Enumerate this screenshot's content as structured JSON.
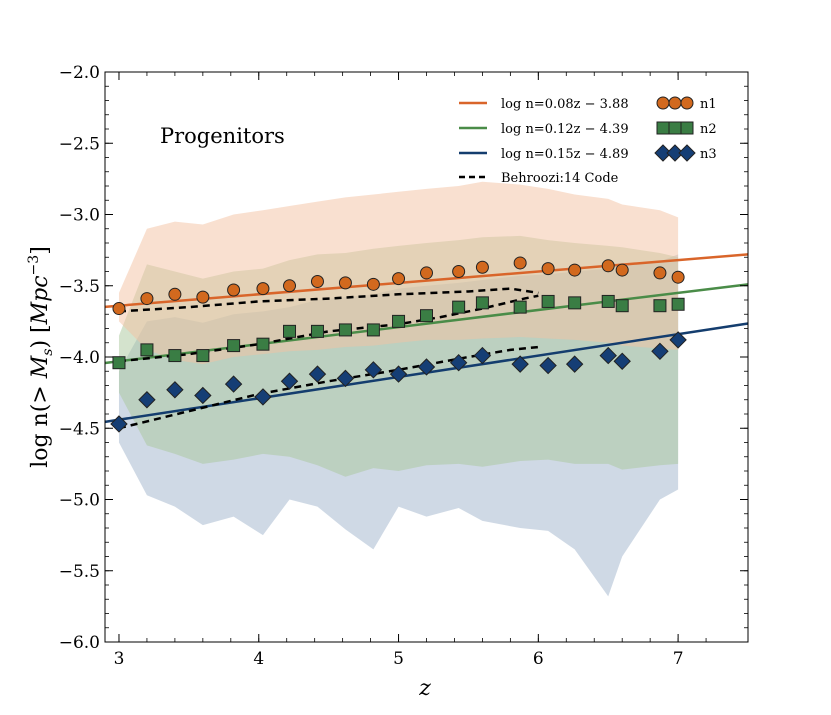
{
  "chart_data": {
    "type": "scatter",
    "title": "",
    "annotation": "Progenitors",
    "xlabel": "z",
    "ylabel": "log n(> M_s) [Mpc^-3]",
    "xlim": [
      2.9,
      7.5
    ],
    "ylim": [
      -6.0,
      -2.0
    ],
    "xticks": [
      3,
      4,
      5,
      6,
      7
    ],
    "yticks": [
      -6.0,
      -5.5,
      -5.0,
      -4.5,
      -4.0,
      -3.5,
      -3.0,
      -2.5,
      -2.0
    ],
    "legend_position": "top-right",
    "colors": {
      "n1": "#d2691e",
      "n2": "#3a7d44",
      "n3": "#153e75",
      "line1": "#d9652a",
      "line2": "#4a8c48",
      "line3": "#143d6e",
      "band1": "#f3c1a1",
      "band2": "#a9c79b",
      "band3": "#9fb3cc",
      "behroozi": "#000000"
    },
    "fit_lines": [
      {
        "name": "log n=0.08z − 3.88",
        "slope": 0.08,
        "intercept": -3.88
      },
      {
        "name": "log n=0.12z − 4.39",
        "slope": 0.12,
        "intercept": -4.39
      },
      {
        "name": "log n=0.15z − 4.89",
        "slope": 0.15,
        "intercept": -4.89
      }
    ],
    "behroozi": {
      "name": "Behroozi:14 Code",
      "curves": [
        {
          "x": [
            3.0,
            3.5,
            4.0,
            4.5,
            5.0,
            5.5,
            5.8,
            6.0
          ],
          "y": [
            -3.68,
            -3.65,
            -3.61,
            -3.59,
            -3.56,
            -3.54,
            -3.52,
            -3.55
          ]
        },
        {
          "x": [
            3.0,
            3.5,
            4.0,
            4.5,
            5.0,
            5.3,
            5.6,
            5.9,
            6.0
          ],
          "y": [
            -4.03,
            -3.98,
            -3.91,
            -3.82,
            -3.77,
            -3.72,
            -3.66,
            -3.59,
            -3.57
          ]
        },
        {
          "x": [
            3.0,
            3.5,
            4.0,
            4.5,
            5.0,
            5.5,
            5.8,
            6.0
          ],
          "y": [
            -4.5,
            -4.38,
            -4.26,
            -4.17,
            -4.09,
            -4.0,
            -3.95,
            -3.93
          ]
        }
      ]
    },
    "series": [
      {
        "name": "n1",
        "marker": "circle",
        "x": [
          3.0,
          3.2,
          3.4,
          3.6,
          3.82,
          4.03,
          4.22,
          4.42,
          4.62,
          4.82,
          5.0,
          5.2,
          5.43,
          5.6,
          5.87,
          6.07,
          6.26,
          6.5,
          6.6,
          6.87,
          7.0
        ],
        "y": [
          -3.66,
          -3.59,
          -3.56,
          -3.58,
          -3.53,
          -3.52,
          -3.5,
          -3.47,
          -3.48,
          -3.49,
          -3.45,
          -3.41,
          -3.4,
          -3.37,
          -3.34,
          -3.38,
          -3.39,
          -3.36,
          -3.39,
          -3.41,
          -3.44
        ],
        "band_upper": [
          -3.55,
          -3.1,
          -3.05,
          -3.07,
          -3.0,
          -2.97,
          -2.94,
          -2.91,
          -2.88,
          -2.86,
          -2.84,
          -2.82,
          -2.8,
          -2.77,
          -2.79,
          -2.82,
          -2.86,
          -2.89,
          -2.93,
          -2.97,
          -3.02
        ],
        "band_lower": [
          -3.75,
          -3.95,
          -4.02,
          -4.05,
          -4.0,
          -3.98,
          -3.96,
          -3.95,
          -3.93,
          -3.92,
          -3.9,
          -3.88,
          -3.88,
          -3.87,
          -3.86,
          -3.87,
          -3.88,
          -3.9,
          -3.92,
          -3.94,
          -3.95
        ]
      },
      {
        "name": "n2",
        "marker": "square",
        "x": [
          3.0,
          3.2,
          3.4,
          3.6,
          3.82,
          4.03,
          4.22,
          4.42,
          4.62,
          4.82,
          5.0,
          5.2,
          5.43,
          5.6,
          5.87,
          6.07,
          6.26,
          6.5,
          6.6,
          6.87,
          7.0
        ],
        "y": [
          -4.04,
          -3.95,
          -3.99,
          -3.99,
          -3.92,
          -3.91,
          -3.82,
          -3.82,
          -3.81,
          -3.81,
          -3.75,
          -3.71,
          -3.65,
          -3.62,
          -3.65,
          -3.61,
          -3.62,
          -3.61,
          -3.64,
          -3.64,
          -3.63
        ],
        "band_upper": [
          -3.85,
          -3.35,
          -3.4,
          -3.45,
          -3.4,
          -3.38,
          -3.32,
          -3.28,
          -3.27,
          -3.24,
          -3.22,
          -3.2,
          -3.18,
          -3.16,
          -3.15,
          -3.18,
          -3.2,
          -3.22,
          -3.23,
          -3.27,
          -3.3
        ],
        "band_lower": [
          -4.25,
          -4.62,
          -4.68,
          -4.75,
          -4.72,
          -4.68,
          -4.7,
          -4.76,
          -4.84,
          -4.78,
          -4.8,
          -4.76,
          -4.75,
          -4.77,
          -4.73,
          -4.72,
          -4.75,
          -4.75,
          -4.79,
          -4.76,
          -4.75
        ]
      },
      {
        "name": "n3",
        "marker": "diamond",
        "x": [
          3.0,
          3.2,
          3.4,
          3.6,
          3.82,
          4.03,
          4.22,
          4.42,
          4.62,
          4.82,
          5.0,
          5.2,
          5.43,
          5.6,
          5.87,
          6.07,
          6.26,
          6.5,
          6.6,
          6.87,
          7.0
        ],
        "y": [
          -4.47,
          -4.3,
          -4.23,
          -4.27,
          -4.19,
          -4.28,
          -4.17,
          -4.12,
          -4.15,
          -4.09,
          -4.12,
          -4.07,
          -4.04,
          -3.99,
          -4.05,
          -4.06,
          -4.05,
          -3.99,
          -4.03,
          -3.96,
          -3.88
        ],
        "band_upper": [
          -4.1,
          -3.75,
          -3.72,
          -3.76,
          -3.7,
          -3.68,
          -3.65,
          -3.6,
          -3.58,
          -3.56,
          -3.52,
          -3.5,
          -3.48,
          -3.46,
          -3.43,
          -3.42,
          -3.4,
          -3.38,
          -3.36,
          -3.33,
          -3.28
        ],
        "band_lower": [
          -4.6,
          -4.97,
          -5.05,
          -5.18,
          -5.12,
          -5.25,
          -5.0,
          -5.05,
          -5.21,
          -5.35,
          -5.05,
          -5.12,
          -5.06,
          -5.15,
          -5.2,
          -5.22,
          -5.35,
          -5.68,
          -5.4,
          -5.0,
          -4.93
        ]
      }
    ]
  }
}
